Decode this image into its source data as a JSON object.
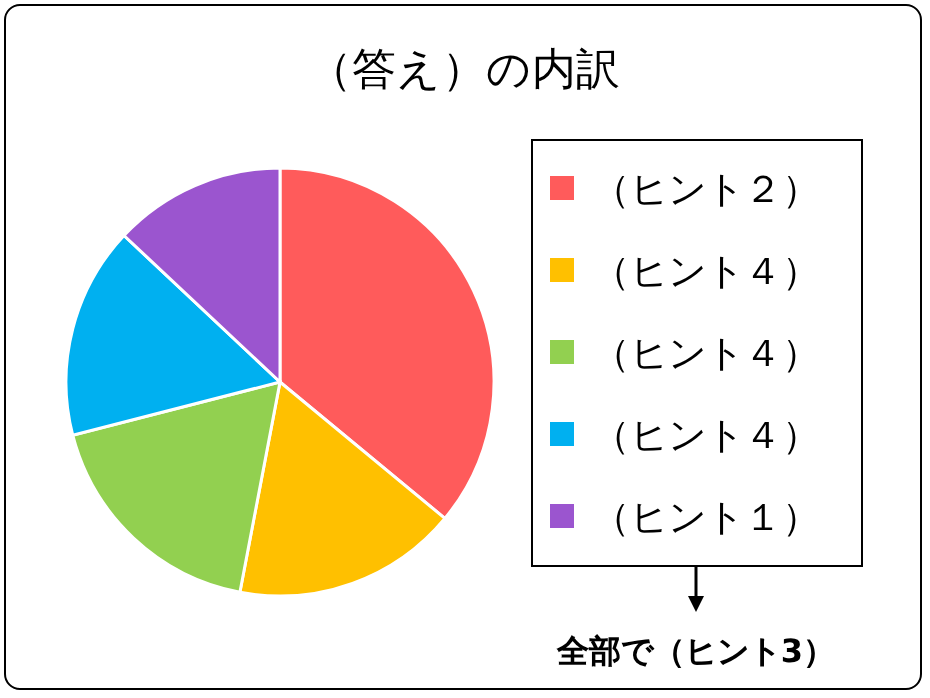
{
  "chart_data": {
    "type": "pie",
    "title": "（答え）の内訳",
    "categories": [
      "（ヒント２）",
      "（ヒント４）",
      "（ヒント４）",
      "（ヒント４）",
      "（ヒント１）"
    ],
    "values": [
      36,
      17,
      18,
      16,
      13
    ],
    "colors": [
      "#ff5b5b",
      "#ffc000",
      "#92d050",
      "#00b0f0",
      "#9b55cf"
    ],
    "legend": "right",
    "annotations": [
      "全部で（ヒント3）"
    ]
  }
}
